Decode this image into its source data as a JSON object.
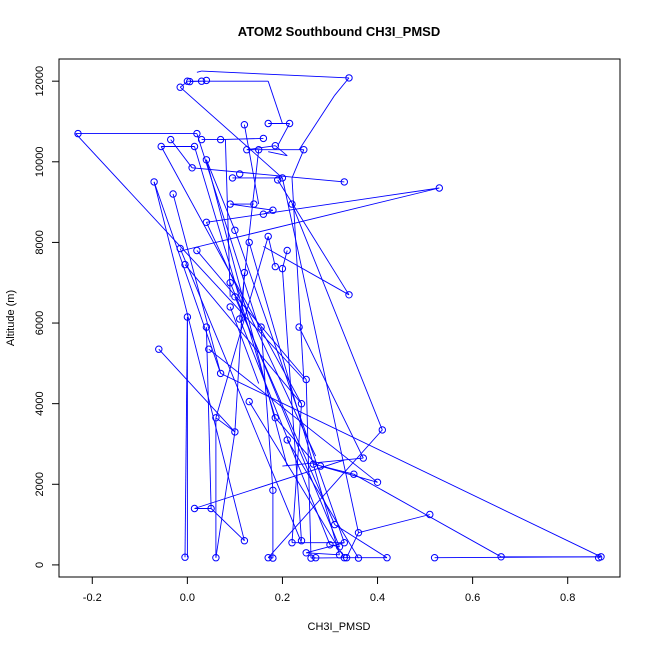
{
  "chart_data": {
    "type": "line",
    "title": "ATOM2 Southbound CH3I_PMSD",
    "xlabel": "CH3I_PMSD",
    "ylabel": "Altitude (m)",
    "xlim": [
      -0.27,
      0.91
    ],
    "ylim": [
      -300,
      12550
    ],
    "x_ticks": [
      -0.2,
      0.0,
      0.2,
      0.4,
      0.6,
      0.8
    ],
    "x_tick_labels": [
      "-0.2",
      "0.0",
      "0.2",
      "0.4",
      "0.6",
      "0.8"
    ],
    "y_ticks": [
      0,
      2000,
      4000,
      6000,
      8000,
      10000,
      12000
    ],
    "y_tick_labels": [
      "0",
      "2000",
      "4000",
      "6000",
      "8000",
      "10000",
      "12000"
    ],
    "grid": false,
    "legend": "none",
    "line_color": "#0000ff",
    "marker": "open-circle",
    "points": [
      [
        0.34,
        12080
      ],
      [
        0.03,
        12000
      ],
      [
        0.04,
        12020
      ],
      [
        0.0,
        12000
      ],
      [
        0.005,
        11990
      ],
      [
        -0.015,
        11850
      ],
      [
        0.17,
        10950
      ],
      [
        0.215,
        10950
      ],
      [
        0.12,
        10920
      ],
      [
        0.07,
        10550
      ],
      [
        0.16,
        10580
      ],
      [
        0.03,
        10550
      ],
      [
        -0.035,
        10550
      ],
      [
        0.185,
        10400
      ],
      [
        0.15,
        10300
      ],
      [
        -0.055,
        10380
      ],
      [
        0.015,
        10380
      ],
      [
        0.245,
        10300
      ],
      [
        0.04,
        10050
      ],
      [
        0.01,
        9850
      ],
      [
        0.125,
        10300
      ],
      [
        0.095,
        9600
      ],
      [
        0.2,
        9600
      ],
      [
        0.33,
        9500
      ],
      [
        0.19,
        9550
      ],
      [
        -0.07,
        9500
      ],
      [
        0.53,
        9350
      ],
      [
        0.14,
        8950
      ],
      [
        0.09,
        8950
      ],
      [
        -0.03,
        9200
      ],
      [
        0.22,
        8950
      ],
      [
        0.18,
        8800
      ],
      [
        0.16,
        8700
      ],
      [
        0.04,
        8500
      ],
      [
        0.1,
        8300
      ],
      [
        0.17,
        8150
      ],
      [
        0.13,
        8000
      ],
      [
        0.21,
        7800
      ],
      [
        0.02,
        7800
      ],
      [
        -0.015,
        7850
      ],
      [
        -0.005,
        7450
      ],
      [
        0.185,
        7400
      ],
      [
        0.2,
        7350
      ],
      [
        0.12,
        7250
      ],
      [
        0.09,
        7000
      ],
      [
        0.34,
        6700
      ],
      [
        0.1,
        6650
      ],
      [
        0.11,
        6100
      ],
      [
        0.0,
        6150
      ],
      [
        0.04,
        5900
      ],
      [
        0.155,
        5900
      ],
      [
        0.235,
        5900
      ],
      [
        0.045,
        5350
      ],
      [
        -0.06,
        5350
      ],
      [
        0.07,
        4750
      ],
      [
        0.25,
        4600
      ],
      [
        0.13,
        4050
      ],
      [
        0.24,
        4000
      ],
      [
        0.185,
        3650
      ],
      [
        0.41,
        3350
      ],
      [
        0.1,
        3300
      ],
      [
        0.06,
        3650
      ],
      [
        0.21,
        3100
      ],
      [
        0.37,
        2650
      ],
      [
        0.265,
        2500
      ],
      [
        0.35,
        2250
      ],
      [
        0.4,
        2050
      ],
      [
        0.18,
        1850
      ],
      [
        0.31,
        1000
      ],
      [
        0.015,
        1400
      ],
      [
        0.05,
        1400
      ],
      [
        0.51,
        1250
      ],
      [
        0.36,
        800
      ],
      [
        0.12,
        600
      ],
      [
        0.24,
        600
      ],
      [
        0.22,
        550
      ],
      [
        0.33,
        550
      ],
      [
        0.3,
        500
      ],
      [
        0.32,
        450
      ],
      [
        0.25,
        300
      ],
      [
        0.32,
        250
      ],
      [
        0.66,
        200
      ],
      [
        0.87,
        200
      ],
      [
        0.865,
        180
      ],
      [
        0.42,
        180
      ],
      [
        0.52,
        180
      ],
      [
        0.33,
        180
      ],
      [
        0.17,
        180
      ],
      [
        0.18,
        170
      ],
      [
        0.26,
        170
      ],
      [
        0.27,
        180
      ],
      [
        0.06,
        180
      ],
      [
        0.36,
        170
      ],
      [
        0.335,
        180
      ],
      [
        -0.005,
        190
      ],
      [
        -0.23,
        10700
      ],
      [
        0.02,
        10700
      ],
      [
        0.11,
        9700
      ],
      [
        0.28,
        2450
      ],
      [
        0.09,
        6400
      ]
    ],
    "segments": [
      [
        [
          0.03,
          12250
        ],
        [
          0.34,
          12080
        ]
      ],
      [
        [
          0.02,
          12220
        ],
        [
          0.03,
          12250
        ]
      ],
      [
        [
          0.03,
          12000
        ],
        [
          0.005,
          11990
        ]
      ],
      [
        [
          0.0,
          12000
        ],
        [
          0.17,
          12000
        ]
      ],
      [
        [
          0.17,
          12000
        ],
        [
          0.2,
          10950
        ]
      ],
      [
        [
          0.31,
          11650
        ],
        [
          0.235,
          10300
        ]
      ],
      [
        [
          0.34,
          12080
        ],
        [
          0.31,
          11650
        ]
      ],
      [
        [
          -0.015,
          11850
        ],
        [
          0.0,
          11990
        ]
      ],
      [
        [
          -0.015,
          11850
        ],
        [
          0.2,
          9600
        ]
      ],
      [
        [
          0.17,
          10950
        ],
        [
          0.215,
          10950
        ]
      ],
      [
        [
          0.215,
          10950
        ],
        [
          0.19,
          10400
        ]
      ],
      [
        [
          0.12,
          10920
        ],
        [
          0.15,
          8950
        ]
      ],
      [
        [
          -0.235,
          10700
        ],
        [
          0.02,
          10700
        ]
      ],
      [
        [
          -0.235,
          10700
        ],
        [
          0.245,
          4600
        ]
      ],
      [
        [
          0.02,
          10700
        ],
        [
          0.15,
          5900
        ]
      ],
      [
        [
          0.07,
          10550
        ],
        [
          0.16,
          10580
        ]
      ],
      [
        [
          0.03,
          10550
        ],
        [
          0.08,
          10550
        ]
      ],
      [
        [
          0.08,
          10550
        ],
        [
          0.09,
          6650
        ]
      ],
      [
        [
          -0.035,
          10550
        ],
        [
          0.01,
          9850
        ]
      ],
      [
        [
          -0.055,
          10380
        ],
        [
          0.015,
          10380
        ]
      ],
      [
        [
          -0.055,
          10380
        ],
        [
          0.24,
          4000
        ]
      ],
      [
        [
          0.015,
          10380
        ],
        [
          0.185,
          3650
        ]
      ],
      [
        [
          0.245,
          10300
        ],
        [
          0.125,
          10300
        ]
      ],
      [
        [
          0.245,
          10300
        ],
        [
          0.22,
          9600
        ]
      ],
      [
        [
          0.125,
          10300
        ],
        [
          0.185,
          10400
        ]
      ],
      [
        [
          0.185,
          10400
        ],
        [
          0.21,
          10150
        ]
      ],
      [
        [
          0.15,
          10300
        ],
        [
          0.11,
          6100
        ]
      ],
      [
        [
          0.21,
          10150
        ],
        [
          0.17,
          10250
        ]
      ],
      [
        [
          0.04,
          10050
        ],
        [
          0.1,
          8300
        ]
      ],
      [
        [
          0.04,
          10050
        ],
        [
          0.21,
          2450
        ]
      ],
      [
        [
          0.01,
          9850
        ],
        [
          0.33,
          9500
        ]
      ],
      [
        [
          0.095,
          9600
        ],
        [
          0.2,
          9600
        ]
      ],
      [
        [
          0.2,
          9600
        ],
        [
          0.36,
          800
        ]
      ],
      [
        [
          0.19,
          9550
        ],
        [
          0.34,
          6700
        ]
      ],
      [
        [
          0.22,
          9600
        ],
        [
          0.245,
          4600
        ]
      ],
      [
        [
          -0.07,
          9500
        ],
        [
          0.07,
          4750
        ]
      ],
      [
        [
          -0.07,
          9500
        ],
        [
          0.12,
          600
        ]
      ],
      [
        [
          0.53,
          9350
        ],
        [
          -0.01,
          7800
        ]
      ],
      [
        [
          0.53,
          9350
        ],
        [
          0.04,
          8500
        ]
      ],
      [
        [
          0.14,
          8950
        ],
        [
          0.09,
          8950
        ]
      ],
      [
        [
          0.09,
          8950
        ],
        [
          0.18,
          8800
        ]
      ],
      [
        [
          -0.03,
          9200
        ],
        [
          0.07,
          4750
        ]
      ],
      [
        [
          0.22,
          8950
        ],
        [
          0.41,
          3350
        ]
      ],
      [
        [
          0.18,
          8800
        ],
        [
          0.16,
          8700
        ]
      ],
      [
        [
          0.04,
          8500
        ],
        [
          0.27,
          2700
        ]
      ],
      [
        [
          0.1,
          8300
        ],
        [
          0.33,
          550
        ]
      ],
      [
        [
          0.17,
          8150
        ],
        [
          0.06,
          3650
        ]
      ],
      [
        [
          0.13,
          8000
        ],
        [
          0.32,
          250
        ]
      ],
      [
        [
          0.21,
          7800
        ],
        [
          0.2,
          7350
        ]
      ],
      [
        [
          0.02,
          7800
        ],
        [
          0.25,
          4600
        ]
      ],
      [
        [
          -0.015,
          7850
        ],
        [
          0.24,
          550
        ]
      ],
      [
        [
          -0.005,
          7450
        ],
        [
          0.24,
          4000
        ]
      ],
      [
        [
          0.185,
          7400
        ],
        [
          0.17,
          8150
        ]
      ],
      [
        [
          0.2,
          7350
        ],
        [
          0.24,
          600
        ]
      ],
      [
        [
          0.12,
          7250
        ],
        [
          0.1,
          3300
        ]
      ],
      [
        [
          0.09,
          7000
        ],
        [
          0.32,
          450
        ]
      ],
      [
        [
          0.34,
          6700
        ],
        [
          0.16,
          7900
        ]
      ],
      [
        [
          0.1,
          6650
        ],
        [
          0.31,
          1000
        ]
      ],
      [
        [
          0.11,
          6100
        ],
        [
          0.3,
          500
        ]
      ],
      [
        [
          0.0,
          6150
        ],
        [
          0.0,
          190
        ]
      ],
      [
        [
          0.04,
          5900
        ],
        [
          0.05,
          1400
        ]
      ],
      [
        [
          0.155,
          5900
        ],
        [
          0.18,
          1850
        ]
      ],
      [
        [
          0.235,
          5900
        ],
        [
          0.37,
          2650
        ]
      ],
      [
        [
          0.045,
          5350
        ],
        [
          0.4,
          2050
        ]
      ],
      [
        [
          -0.06,
          5350
        ],
        [
          0.1,
          3300
        ]
      ],
      [
        [
          0.07,
          4750
        ],
        [
          0.87,
          200
        ]
      ],
      [
        [
          0.25,
          4600
        ],
        [
          0.26,
          170
        ]
      ],
      [
        [
          0.13,
          4050
        ],
        [
          0.33,
          180
        ]
      ],
      [
        [
          0.24,
          4000
        ],
        [
          0.22,
          550
        ]
      ],
      [
        [
          0.185,
          3650
        ],
        [
          0.27,
          2500
        ]
      ],
      [
        [
          0.41,
          3350
        ],
        [
          0.17,
          180
        ]
      ],
      [
        [
          0.1,
          3300
        ],
        [
          0.06,
          180
        ]
      ],
      [
        [
          0.06,
          3650
        ],
        [
          0.1,
          3300
        ]
      ],
      [
        [
          0.21,
          3100
        ],
        [
          0.36,
          170
        ]
      ],
      [
        [
          0.37,
          2650
        ],
        [
          0.2,
          2450
        ]
      ],
      [
        [
          0.265,
          2500
        ],
        [
          0.35,
          2250
        ]
      ],
      [
        [
          0.35,
          2250
        ],
        [
          0.66,
          200
        ]
      ],
      [
        [
          0.4,
          2050
        ],
        [
          0.28,
          2450
        ]
      ],
      [
        [
          0.18,
          1850
        ],
        [
          0.18,
          170
        ]
      ],
      [
        [
          0.31,
          1000
        ],
        [
          0.42,
          180
        ]
      ],
      [
        [
          0.015,
          1400
        ],
        [
          0.05,
          1400
        ]
      ],
      [
        [
          0.015,
          1400
        ],
        [
          0.33,
          2600
        ]
      ],
      [
        [
          0.05,
          1400
        ],
        [
          0.12,
          600
        ]
      ],
      [
        [
          0.51,
          1250
        ],
        [
          0.36,
          800
        ]
      ],
      [
        [
          0.36,
          800
        ],
        [
          0.335,
          180
        ]
      ],
      [
        [
          0.22,
          550
        ],
        [
          0.33,
          550
        ]
      ],
      [
        [
          0.33,
          550
        ],
        [
          0.25,
          300
        ]
      ],
      [
        [
          0.3,
          500
        ],
        [
          0.32,
          450
        ]
      ],
      [
        [
          0.25,
          300
        ],
        [
          0.32,
          250
        ]
      ],
      [
        [
          0.66,
          200
        ],
        [
          0.87,
          200
        ]
      ],
      [
        [
          0.87,
          200
        ],
        [
          0.865,
          180
        ]
      ],
      [
        [
          0.42,
          180
        ],
        [
          0.33,
          180
        ]
      ],
      [
        [
          0.52,
          180
        ],
        [
          0.52,
          180
        ]
      ],
      [
        [
          0.52,
          180
        ],
        [
          0.87,
          200
        ]
      ],
      [
        [
          0.33,
          180
        ],
        [
          0.26,
          170
        ]
      ],
      [
        [
          0.26,
          170
        ],
        [
          0.27,
          180
        ]
      ],
      [
        [
          0.17,
          180
        ],
        [
          0.18,
          170
        ]
      ],
      [
        [
          -0.005,
          190
        ],
        [
          0.0,
          6150
        ]
      ],
      [
        [
          0.06,
          180
        ],
        [
          0.06,
          3650
        ]
      ],
      [
        [
          0.09,
          6400
        ],
        [
          0.15,
          4500
        ]
      ]
    ]
  }
}
